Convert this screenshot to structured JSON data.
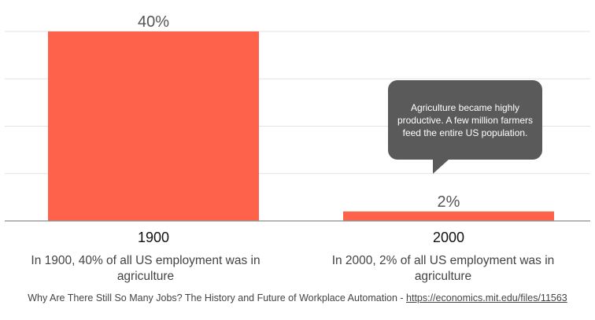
{
  "chart_data": {
    "type": "bar",
    "categories": [
      "1900",
      "2000"
    ],
    "values": [
      40,
      2
    ],
    "value_labels": [
      "40%",
      "2%"
    ],
    "ylim": [
      0,
      40
    ],
    "grid": true,
    "bar_color": "#FF624A",
    "title": "",
    "xlabel": "",
    "ylabel": ""
  },
  "captions": [
    "In 1900, 40% of all US employment was in agriculture",
    "In 2000, 2% of all US employment was in agriculture"
  ],
  "annotation": "Agriculture became highly productive. A few million farmers feed the entire US population.",
  "source": {
    "text": "Why Are There Still So Many Jobs? The History and Future of Workplace Automation - ",
    "link": "https://economics.mit.edu/files/11563"
  }
}
